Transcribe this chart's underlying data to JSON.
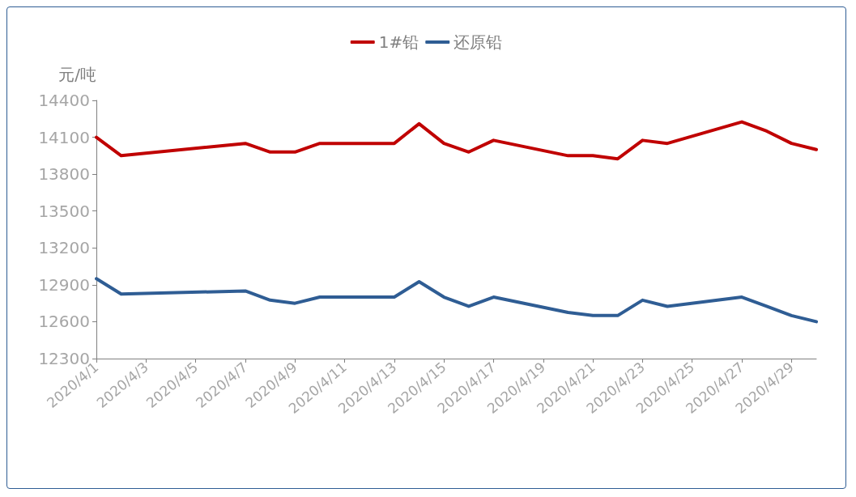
{
  "chart_data": {
    "type": "line",
    "ylabel": "元/吨",
    "legend": "top",
    "grid": false,
    "marker": "none",
    "line_style": "solid",
    "x": [
      "2020-04-01",
      "2020-04-02",
      "2020-04-07",
      "2020-04-08",
      "2020-04-09",
      "2020-04-10",
      "2020-04-13",
      "2020-04-14",
      "2020-04-15",
      "2020-04-16",
      "2020-04-17",
      "2020-04-20",
      "2020-04-21",
      "2020-04-22",
      "2020-04-23",
      "2020-04-24",
      "2020-04-27",
      "2020-04-28",
      "2020-04-29",
      "2020-04-30"
    ],
    "series": [
      {
        "name": "1#铅",
        "color": "#c00000",
        "values": [
          14100,
          13950,
          14050,
          13980,
          13980,
          14050,
          14050,
          14210,
          14050,
          13980,
          14075,
          13950,
          13950,
          13925,
          14075,
          14050,
          14225,
          14150,
          14050,
          14000
        ]
      },
      {
        "name": "还原铅",
        "color": "#2f5d94",
        "values": [
          12950,
          12825,
          12850,
          12775,
          12750,
          12800,
          12800,
          12925,
          12800,
          12725,
          12800,
          12675,
          12650,
          12650,
          12775,
          12725,
          12800,
          12725,
          12650,
          12600
        ]
      }
    ],
    "xlim": [
      "2020-04-01",
      "2020-04-30"
    ],
    "xticks": [
      {
        "value": "2020-04-01",
        "label": "2020/4/1"
      },
      {
        "value": "2020-04-03",
        "label": "2020/4/3"
      },
      {
        "value": "2020-04-05",
        "label": "2020/4/5"
      },
      {
        "value": "2020-04-07",
        "label": "2020/4/7"
      },
      {
        "value": "2020-04-09",
        "label": "2020/4/9"
      },
      {
        "value": "2020-04-11",
        "label": "2020/4/11"
      },
      {
        "value": "2020-04-13",
        "label": "2020/4/13"
      },
      {
        "value": "2020-04-15",
        "label": "2020/4/15"
      },
      {
        "value": "2020-04-17",
        "label": "2020/4/17"
      },
      {
        "value": "2020-04-19",
        "label": "2020/4/19"
      },
      {
        "value": "2020-04-21",
        "label": "2020/4/21"
      },
      {
        "value": "2020-04-23",
        "label": "2020/4/23"
      },
      {
        "value": "2020-04-25",
        "label": "2020/4/25"
      },
      {
        "value": "2020-04-27",
        "label": "2020/4/27"
      },
      {
        "value": "2020-04-29",
        "label": "2020/4/29"
      }
    ],
    "ylim": [
      12300,
      14400
    ],
    "yticks": [
      12300,
      12600,
      12900,
      13200,
      13500,
      13800,
      14100,
      14400
    ]
  }
}
